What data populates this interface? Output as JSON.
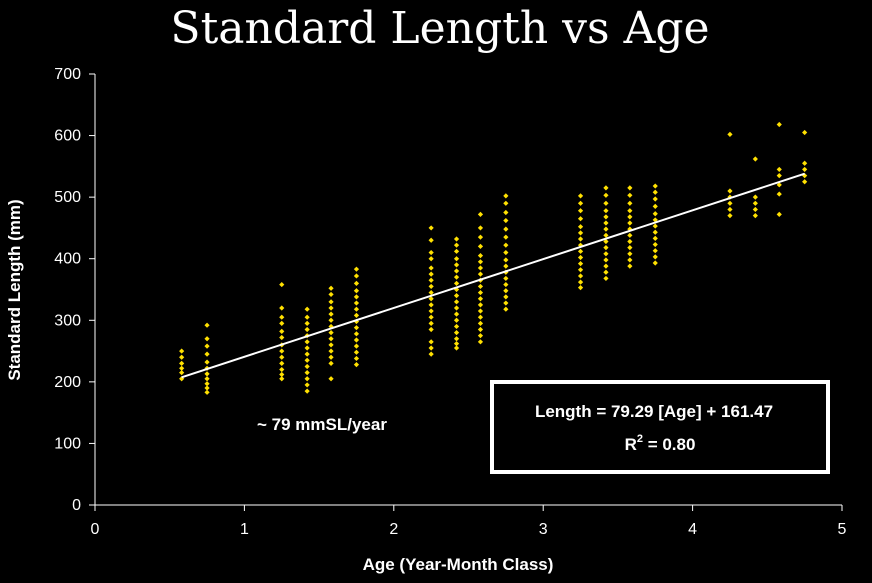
{
  "chart_data": {
    "type": "scatter",
    "title": "Standard Length vs Age",
    "xlabel": "Age (Year-Month Class)",
    "ylabel": "Standard Length (mm)",
    "xlim": [
      0,
      5
    ],
    "ylim": [
      0,
      700
    ],
    "x_ticks": [
      "0",
      "1",
      "2",
      "3",
      "4",
      "5"
    ],
    "y_ticks": [
      "0",
      "100",
      "200",
      "300",
      "400",
      "500",
      "600",
      "700"
    ],
    "grid": false,
    "point_color": "#ffe000",
    "line_color": "#ffffff",
    "background": "#000000",
    "series": [
      {
        "points": [
          [
            0.58,
            205
          ],
          [
            0.58,
            215
          ],
          [
            0.58,
            222
          ],
          [
            0.58,
            230
          ],
          [
            0.58,
            240
          ],
          [
            0.58,
            250
          ],
          [
            0.75,
            183
          ],
          [
            0.75,
            190
          ],
          [
            0.75,
            197
          ],
          [
            0.75,
            205
          ],
          [
            0.75,
            213
          ],
          [
            0.75,
            222
          ],
          [
            0.75,
            232
          ],
          [
            0.75,
            245
          ],
          [
            0.75,
            258
          ],
          [
            0.75,
            270
          ],
          [
            0.75,
            292
          ],
          [
            1.25,
            205
          ],
          [
            1.25,
            212
          ],
          [
            1.25,
            220
          ],
          [
            1.25,
            230
          ],
          [
            1.25,
            240
          ],
          [
            1.25,
            250
          ],
          [
            1.25,
            260
          ],
          [
            1.25,
            272
          ],
          [
            1.25,
            282
          ],
          [
            1.25,
            295
          ],
          [
            1.25,
            305
          ],
          [
            1.25,
            320
          ],
          [
            1.25,
            358
          ],
          [
            1.42,
            185
          ],
          [
            1.42,
            195
          ],
          [
            1.42,
            205
          ],
          [
            1.42,
            215
          ],
          [
            1.42,
            225
          ],
          [
            1.42,
            235
          ],
          [
            1.42,
            245
          ],
          [
            1.42,
            255
          ],
          [
            1.42,
            265
          ],
          [
            1.42,
            275
          ],
          [
            1.42,
            285
          ],
          [
            1.42,
            295
          ],
          [
            1.42,
            305
          ],
          [
            1.42,
            318
          ],
          [
            1.58,
            205
          ],
          [
            1.58,
            230
          ],
          [
            1.58,
            240
          ],
          [
            1.58,
            250
          ],
          [
            1.58,
            260
          ],
          [
            1.58,
            270
          ],
          [
            1.58,
            280
          ],
          [
            1.58,
            290
          ],
          [
            1.58,
            300
          ],
          [
            1.58,
            310
          ],
          [
            1.58,
            320
          ],
          [
            1.58,
            330
          ],
          [
            1.58,
            342
          ],
          [
            1.58,
            352
          ],
          [
            1.75,
            228
          ],
          [
            1.75,
            238
          ],
          [
            1.75,
            248
          ],
          [
            1.75,
            258
          ],
          [
            1.75,
            268
          ],
          [
            1.75,
            278
          ],
          [
            1.75,
            288
          ],
          [
            1.75,
            298
          ],
          [
            1.75,
            308
          ],
          [
            1.75,
            318
          ],
          [
            1.75,
            328
          ],
          [
            1.75,
            338
          ],
          [
            1.75,
            348
          ],
          [
            1.75,
            360
          ],
          [
            1.75,
            372
          ],
          [
            1.75,
            383
          ],
          [
            2.25,
            245
          ],
          [
            2.25,
            255
          ],
          [
            2.25,
            265
          ],
          [
            2.25,
            285
          ],
          [
            2.25,
            295
          ],
          [
            2.25,
            305
          ],
          [
            2.25,
            315
          ],
          [
            2.25,
            325
          ],
          [
            2.25,
            335
          ],
          [
            2.25,
            345
          ],
          [
            2.25,
            355
          ],
          [
            2.25,
            365
          ],
          [
            2.25,
            375
          ],
          [
            2.25,
            385
          ],
          [
            2.25,
            400
          ],
          [
            2.25,
            410
          ],
          [
            2.25,
            430
          ],
          [
            2.25,
            450
          ],
          [
            2.42,
            255
          ],
          [
            2.42,
            262
          ],
          [
            2.42,
            270
          ],
          [
            2.42,
            280
          ],
          [
            2.42,
            290
          ],
          [
            2.42,
            300
          ],
          [
            2.42,
            310
          ],
          [
            2.42,
            320
          ],
          [
            2.42,
            330
          ],
          [
            2.42,
            340
          ],
          [
            2.42,
            350
          ],
          [
            2.42,
            360
          ],
          [
            2.42,
            370
          ],
          [
            2.42,
            380
          ],
          [
            2.42,
            390
          ],
          [
            2.42,
            400
          ],
          [
            2.42,
            412
          ],
          [
            2.42,
            422
          ],
          [
            2.42,
            432
          ],
          [
            2.58,
            265
          ],
          [
            2.58,
            275
          ],
          [
            2.58,
            285
          ],
          [
            2.58,
            295
          ],
          [
            2.58,
            305
          ],
          [
            2.58,
            315
          ],
          [
            2.58,
            325
          ],
          [
            2.58,
            335
          ],
          [
            2.58,
            345
          ],
          [
            2.58,
            355
          ],
          [
            2.58,
            365
          ],
          [
            2.58,
            375
          ],
          [
            2.58,
            385
          ],
          [
            2.58,
            395
          ],
          [
            2.58,
            405
          ],
          [
            2.58,
            420
          ],
          [
            2.58,
            435
          ],
          [
            2.58,
            450
          ],
          [
            2.58,
            472
          ],
          [
            2.75,
            318
          ],
          [
            2.75,
            328
          ],
          [
            2.75,
            338
          ],
          [
            2.75,
            348
          ],
          [
            2.75,
            358
          ],
          [
            2.75,
            368
          ],
          [
            2.75,
            378
          ],
          [
            2.75,
            388
          ],
          [
            2.75,
            398
          ],
          [
            2.75,
            410
          ],
          [
            2.75,
            422
          ],
          [
            2.75,
            435
          ],
          [
            2.75,
            448
          ],
          [
            2.75,
            462
          ],
          [
            2.75,
            475
          ],
          [
            2.75,
            490
          ],
          [
            2.75,
            502
          ],
          [
            3.25,
            353
          ],
          [
            3.25,
            362
          ],
          [
            3.25,
            372
          ],
          [
            3.25,
            382
          ],
          [
            3.25,
            392
          ],
          [
            3.25,
            402
          ],
          [
            3.25,
            412
          ],
          [
            3.25,
            422
          ],
          [
            3.25,
            432
          ],
          [
            3.25,
            442
          ],
          [
            3.25,
            452
          ],
          [
            3.25,
            465
          ],
          [
            3.25,
            478
          ],
          [
            3.25,
            490
          ],
          [
            3.25,
            502
          ],
          [
            3.42,
            368
          ],
          [
            3.42,
            378
          ],
          [
            3.42,
            388
          ],
          [
            3.42,
            398
          ],
          [
            3.42,
            408
          ],
          [
            3.42,
            418
          ],
          [
            3.42,
            428
          ],
          [
            3.42,
            438
          ],
          [
            3.42,
            448
          ],
          [
            3.42,
            458
          ],
          [
            3.42,
            468
          ],
          [
            3.42,
            478
          ],
          [
            3.42,
            490
          ],
          [
            3.42,
            503
          ],
          [
            3.42,
            515
          ],
          [
            3.58,
            388
          ],
          [
            3.58,
            398
          ],
          [
            3.58,
            408
          ],
          [
            3.58,
            418
          ],
          [
            3.58,
            428
          ],
          [
            3.58,
            438
          ],
          [
            3.58,
            448
          ],
          [
            3.58,
            458
          ],
          [
            3.58,
            468
          ],
          [
            3.58,
            478
          ],
          [
            3.58,
            490
          ],
          [
            3.58,
            503
          ],
          [
            3.58,
            515
          ],
          [
            3.75,
            393
          ],
          [
            3.75,
            403
          ],
          [
            3.75,
            413
          ],
          [
            3.75,
            423
          ],
          [
            3.75,
            433
          ],
          [
            3.75,
            443
          ],
          [
            3.75,
            453
          ],
          [
            3.75,
            463
          ],
          [
            3.75,
            473
          ],
          [
            3.75,
            485
          ],
          [
            3.75,
            497
          ],
          [
            3.75,
            508
          ],
          [
            3.75,
            518
          ],
          [
            4.25,
            470
          ],
          [
            4.25,
            480
          ],
          [
            4.25,
            490
          ],
          [
            4.25,
            500
          ],
          [
            4.25,
            510
          ],
          [
            4.25,
            602
          ],
          [
            4.42,
            470
          ],
          [
            4.42,
            480
          ],
          [
            4.42,
            490
          ],
          [
            4.42,
            500
          ],
          [
            4.42,
            562
          ],
          [
            4.58,
            472
          ],
          [
            4.58,
            505
          ],
          [
            4.58,
            520
          ],
          [
            4.58,
            535
          ],
          [
            4.58,
            545
          ],
          [
            4.58,
            618
          ],
          [
            4.75,
            525
          ],
          [
            4.75,
            535
          ],
          [
            4.75,
            545
          ],
          [
            4.75,
            555
          ],
          [
            4.75,
            605
          ]
        ]
      }
    ],
    "trendline": {
      "slope": 79.29,
      "intercept": 161.47,
      "x_range": [
        0.58,
        4.75
      ]
    },
    "annotations": {
      "rate": "~ 79 mmSL/year",
      "equation": "Length = 79.29 [Age] +  161.47",
      "r2_label": "R",
      "r2_exp": "2",
      "r2_value": " = 0.80"
    }
  }
}
